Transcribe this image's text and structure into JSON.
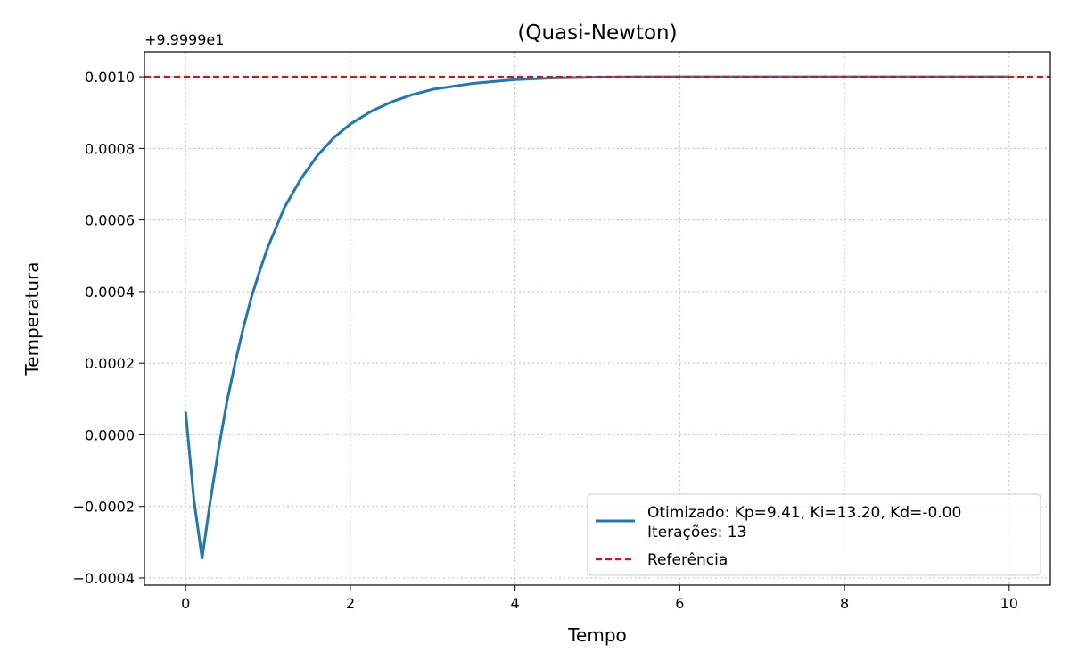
{
  "chart_data": {
    "type": "line",
    "title": "(Quasi-Newton)",
    "xlabel": "Tempo",
    "ylabel": "Temperatura",
    "offset_text": "+9.9999e1",
    "xlim": [
      -0.5,
      10.5
    ],
    "ylim": [
      -0.00042,
      0.00107
    ],
    "xticks": [
      0,
      2,
      4,
      6,
      8,
      10
    ],
    "xtick_labels": [
      "0",
      "2",
      "4",
      "6",
      "8",
      "10"
    ],
    "yticks": [
      -0.0004,
      -0.0002,
      0.0,
      0.0002,
      0.0004,
      0.0006,
      0.0008,
      0.001
    ],
    "ytick_labels": [
      "−0.0004",
      "−0.0002",
      "0.0000",
      "0.0002",
      "0.0004",
      "0.0006",
      "0.0008",
      "0.0010"
    ],
    "grid": true,
    "legend_position": "lower-right",
    "series": [
      {
        "name": "Otimizado: Kp=9.41, Ki=13.20, Kd=-0.00\nIterações: 13",
        "name_lines": [
          "Otimizado: Kp=9.41, Ki=13.20, Kd=-0.00",
          "Iterações: 13"
        ],
        "color": "#1f77b4",
        "style": "solid",
        "x": [
          0,
          0.1,
          0.2,
          0.3,
          0.4,
          0.5,
          0.6,
          0.7,
          0.8,
          0.9,
          1.0,
          1.2,
          1.4,
          1.6,
          1.8,
          2.0,
          2.25,
          2.5,
          2.75,
          3.0,
          3.5,
          4.0,
          4.5,
          5.0,
          5.5,
          6.0,
          7.0,
          8.0,
          9.0,
          10.0
        ],
        "y": [
          6.5e-05,
          -0.00018,
          -0.000345,
          -0.000185,
          -4e-05,
          9e-05,
          0.0002,
          0.000298,
          0.000385,
          0.000458,
          0.000525,
          0.000635,
          0.000715,
          0.00078,
          0.00083,
          0.000868,
          0.000903,
          0.00093,
          0.00095,
          0.000965,
          0.000982,
          0.000992,
          0.000997,
          0.000999,
          0.001,
          0.001,
          0.001,
          0.001,
          0.001,
          0.001
        ]
      },
      {
        "name": "Referência",
        "color": "#ff0000",
        "style": "dashed",
        "y_constant": 0.001
      }
    ]
  }
}
